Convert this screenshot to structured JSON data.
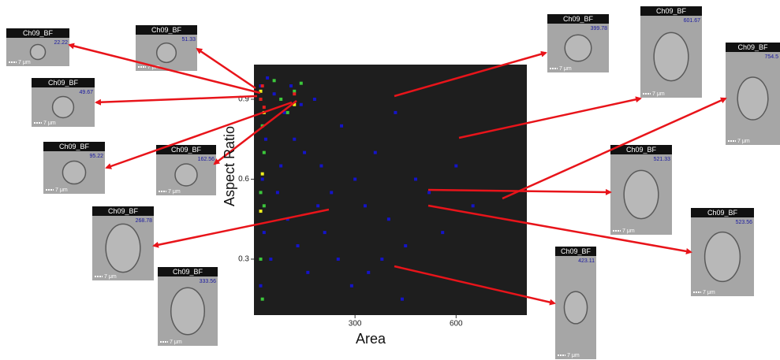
{
  "chart_data": {
    "type": "scatter",
    "xlabel": "Area",
    "ylabel": "Aspect Ratio",
    "xlim": [
      0,
      810
    ],
    "ylim": [
      0.09,
      1.03
    ],
    "xticks": [
      300,
      600
    ],
    "yticks": [
      0.3,
      0.6,
      0.9
    ],
    "background": "#1e1e1e",
    "series": [
      {
        "color": "#1414c8",
        "x": [
          20,
          40,
          60,
          90,
          120,
          150,
          180,
          200,
          230,
          260,
          300,
          330,
          360,
          400,
          420,
          450,
          480,
          520,
          560,
          600,
          650,
          30,
          50,
          70,
          100,
          130,
          160,
          210,
          250,
          290,
          340,
          380,
          440,
          20,
          25,
          35,
          80,
          110,
          140,
          190
        ],
        "values": [
          0.95,
          0.98,
          0.92,
          0.85,
          0.75,
          0.7,
          0.9,
          0.65,
          0.55,
          0.8,
          0.6,
          0.5,
          0.7,
          0.45,
          0.85,
          0.35,
          0.6,
          0.55,
          0.4,
          0.65,
          0.5,
          0.4,
          0.3,
          0.55,
          0.45,
          0.35,
          0.25,
          0.4,
          0.3,
          0.2,
          0.25,
          0.3,
          0.15,
          0.2,
          0.6,
          0.75,
          0.65,
          0.95,
          0.88,
          0.5
        ]
      },
      {
        "color": "#3cc83c",
        "x": [
          20,
          25,
          30,
          60,
          80,
          100,
          120,
          140,
          20,
          30,
          20,
          25
        ],
        "values": [
          0.9,
          0.8,
          0.7,
          0.97,
          0.9,
          0.85,
          0.93,
          0.96,
          0.55,
          0.5,
          0.3,
          0.15
        ]
      },
      {
        "color": "#f0f01e",
        "x": [
          20,
          30,
          120,
          25,
          20
        ],
        "values": [
          0.93,
          0.85,
          0.88,
          0.62,
          0.48
        ]
      },
      {
        "color": "#e61e1e",
        "x": [
          20,
          30,
          120,
          25
        ],
        "values": [
          0.9,
          0.87,
          0.92,
          0.95
        ]
      }
    ]
  },
  "panels": [
    {
      "label": "Ch09_BF",
      "value": "22.22",
      "scale": "7 μm"
    },
    {
      "label": "Ch09_BF",
      "value": "51.33",
      "scale": "7 μm"
    },
    {
      "label": "Ch09_BF",
      "value": "49.67",
      "scale": "7 μm"
    },
    {
      "label": "Ch09_BF",
      "value": "95.22",
      "scale": "7 μm"
    },
    {
      "label": "Ch09_BF",
      "value": "162.56",
      "scale": "7 μm"
    },
    {
      "label": "Ch09_BF",
      "value": "268.78",
      "scale": "7 μm"
    },
    {
      "label": "Ch09_BF",
      "value": "333.56",
      "scale": "7 μm"
    },
    {
      "label": "Ch09_BF",
      "value": "399.78",
      "scale": "7 μm"
    },
    {
      "label": "Ch09_BF",
      "value": "601.67",
      "scale": "7 μm"
    },
    {
      "label": "Ch09_BF",
      "value": "754.5",
      "scale": "7 μm"
    },
    {
      "label": "Ch09_BF",
      "value": "521.33",
      "scale": "7 μm"
    },
    {
      "label": "Ch09_BF",
      "value": "523.56",
      "scale": "7 μm"
    },
    {
      "label": "Ch09_BF",
      "value": "423.11",
      "scale": "7 μm"
    }
  ]
}
